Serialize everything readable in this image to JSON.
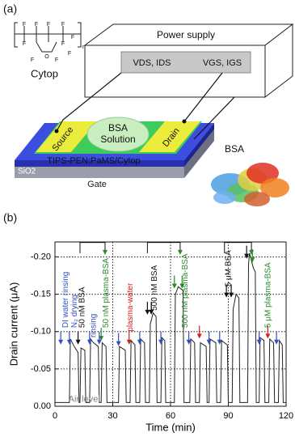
{
  "panel_a": {
    "label": "(a)",
    "cytop_atoms": [
      "F",
      "F",
      "F",
      "F",
      "F",
      "F",
      "F",
      "F",
      "F",
      "F",
      "O",
      "n"
    ],
    "cytop_label": "Cytop",
    "power_supply": "Power supply",
    "vds": "VDS, IDS",
    "vgs": "VGS, IGS",
    "bsa_solution": [
      "BSA",
      "Solution"
    ],
    "source": "Source",
    "drain": "Drain",
    "semiconductor": "TIPS-PEN:PaMS/Cytop",
    "dielectric": "SiO2",
    "gate": "Gate",
    "protein": "BSA"
  },
  "panel_b_label": "(b)",
  "chart_data": {
    "type": "line",
    "x_label": "Time (min)",
    "y_label": "Drain current (μA)",
    "color": "#222222",
    "x": [
      0,
      7.5,
      8,
      10,
      12,
      12.5,
      13,
      13.5,
      15.5,
      16,
      18,
      18.5,
      20,
      22.5,
      23,
      24,
      24.5,
      26.5,
      27,
      33,
      33.5,
      36.5,
      37,
      39,
      39.5,
      41.5,
      42,
      44,
      44.5,
      46.5,
      47,
      49,
      49.5,
      51,
      52.5,
      53,
      55,
      55.5,
      57,
      57.5,
      62,
      62.5,
      64,
      66.5,
      67,
      70,
      70.5,
      72.5,
      73,
      75,
      75.5,
      78.5,
      79,
      80,
      80.5,
      83.5,
      84,
      86,
      86.5,
      89.5,
      90,
      92,
      92.5,
      94,
      95.5,
      96,
      100,
      100.5,
      101,
      103,
      104,
      104.5,
      106,
      106.5,
      108.5,
      109,
      111,
      111.5,
      113.5,
      114,
      116,
      116.5,
      118,
      118.5,
      120
    ],
    "values": [
      -0.005,
      -0.005,
      -0.09,
      -0.08,
      -0.072,
      -0.005,
      -0.005,
      -0.078,
      -0.075,
      -0.005,
      -0.005,
      -0.09,
      -0.085,
      -0.08,
      -0.005,
      -0.005,
      -0.085,
      -0.08,
      -0.005,
      -0.005,
      -0.08,
      -0.075,
      -0.005,
      -0.005,
      -0.088,
      -0.082,
      -0.005,
      -0.005,
      -0.09,
      -0.085,
      -0.005,
      -0.005,
      -0.11,
      -0.125,
      -0.12,
      -0.005,
      -0.005,
      -0.092,
      -0.088,
      -0.005,
      -0.005,
      -0.15,
      -0.16,
      -0.155,
      -0.005,
      -0.005,
      -0.09,
      -0.085,
      -0.005,
      -0.005,
      -0.085,
      -0.08,
      -0.005,
      -0.005,
      -0.09,
      -0.085,
      -0.005,
      -0.005,
      -0.088,
      -0.082,
      -0.005,
      -0.005,
      -0.13,
      -0.15,
      -0.145,
      -0.005,
      -0.005,
      -0.19,
      -0.205,
      -0.185,
      -0.18,
      -0.005,
      -0.005,
      -0.092,
      -0.088,
      -0.005,
      -0.005,
      -0.09,
      -0.085,
      -0.005,
      -0.005,
      -0.088,
      -0.082,
      -0.005,
      -0.005
    ],
    "xlim": [
      0,
      120
    ],
    "xticks": [
      0,
      30,
      60,
      90,
      120
    ],
    "ylim": [
      0,
      -0.22
    ],
    "yticks": [
      {
        "value": 0,
        "label": "0.00"
      },
      -0.05,
      {
        "value": -0.1,
        "label": "-0.10"
      },
      -0.15,
      {
        "value": -0.2,
        "label": "-0.20"
      }
    ],
    "grid": true,
    "annotations": [
      {
        "text": "DI water rinsing",
        "color": "#3050c0"
      },
      {
        "text": "N₂ drying",
        "color": "#3050c0"
      },
      {
        "text": "50 nM BSA",
        "color": "#111111"
      },
      {
        "text": "50 nM plasma-BSA",
        "color": "#2a8a2a"
      },
      {
        "text": "rinsing",
        "color": "#3050c0"
      },
      {
        "text": "plasma-water",
        "color": "#d02020"
      },
      {
        "text": "500 nM BSA",
        "color": "#111111"
      },
      {
        "text": "500 nM plasma-BSA",
        "color": "#2a8a2a"
      },
      {
        "text": "5 μM BSA",
        "color": "#111111"
      },
      {
        "text": "5 μM plasma-BSA",
        "color": "#2a8a2a"
      },
      {
        "text": "Air level",
        "color": "#808080"
      }
    ]
  }
}
